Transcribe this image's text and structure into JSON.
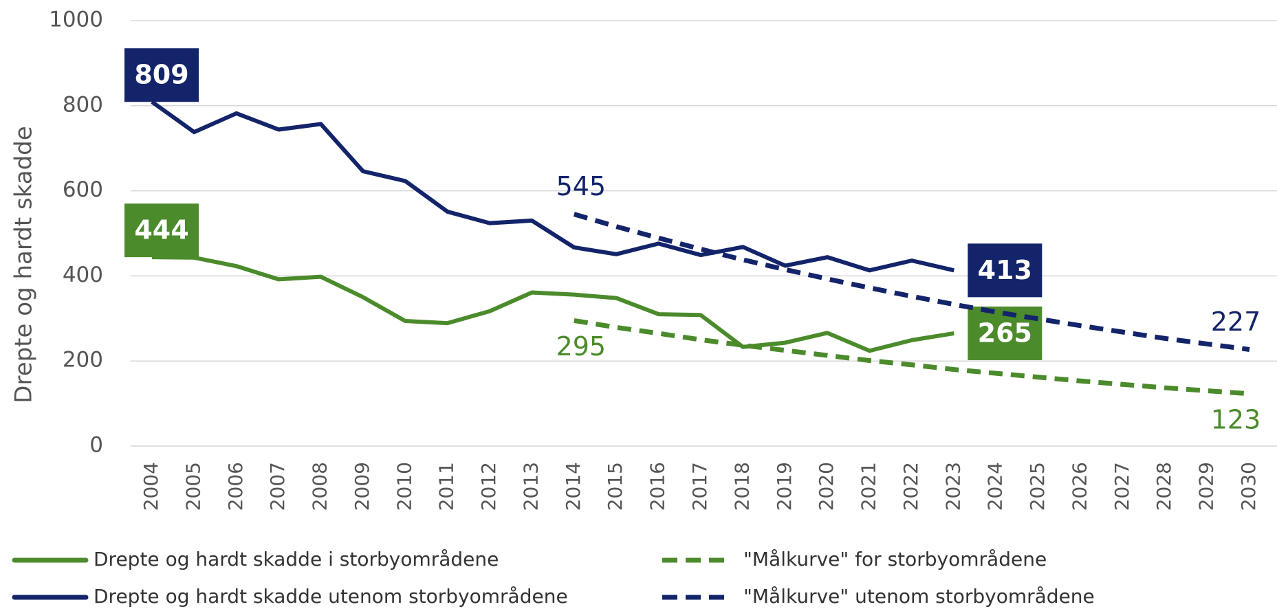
{
  "chart_data": {
    "type": "line",
    "y_label": "Drepte og hardt skadde",
    "x": [
      2004,
      2005,
      2006,
      2007,
      2008,
      2009,
      2010,
      2011,
      2012,
      2013,
      2014,
      2015,
      2016,
      2017,
      2018,
      2019,
      2020,
      2021,
      2022,
      2023,
      2024,
      2025,
      2026,
      2027,
      2028,
      2029,
      2030
    ],
    "xlim": [
      2004,
      2030
    ],
    "ylim": [
      0,
      1000
    ],
    "yticks": [
      0,
      200,
      400,
      600,
      800,
      1000
    ],
    "grid": true,
    "legend": "bottom",
    "series": [
      {
        "name": "Drepte og hardt skadde i storbyområdene",
        "color": "#4b8b2b",
        "style": "solid",
        "values": [
          444,
          443,
          423,
          392,
          398,
          350,
          294,
          289,
          317,
          361,
          356,
          348,
          310,
          308,
          233,
          243,
          266,
          224,
          249,
          265,
          null,
          null,
          null,
          null,
          null,
          null,
          null
        ]
      },
      {
        "name": "Drepte og hardt skadde utenom storbyområdene",
        "color": "#13246a",
        "style": "solid",
        "values": [
          809,
          738,
          782,
          744,
          757,
          646,
          623,
          551,
          524,
          530,
          467,
          451,
          476,
          449,
          468,
          424,
          444,
          413,
          436,
          413,
          null,
          null,
          null,
          null,
          null,
          null,
          null
        ]
      },
      {
        "name": "\"Målkurve\" for storbyområdene",
        "color": "#4b8b2b",
        "style": "dashed",
        "values": [
          null,
          null,
          null,
          null,
          null,
          null,
          null,
          null,
          null,
          null,
          295,
          279,
          265,
          250,
          237,
          225,
          213,
          201,
          191,
          180,
          171,
          162,
          153,
          145,
          137,
          130,
          123
        ]
      },
      {
        "name": "\"Målkurve\" utenom storbyområdene",
        "color": "#13246a",
        "style": "dashed",
        "values": [
          null,
          null,
          null,
          null,
          null,
          null,
          null,
          null,
          null,
          null,
          545,
          516,
          489,
          463,
          438,
          415,
          393,
          372,
          352,
          333,
          315,
          299,
          283,
          268,
          253,
          240,
          227
        ]
      }
    ]
  }
}
